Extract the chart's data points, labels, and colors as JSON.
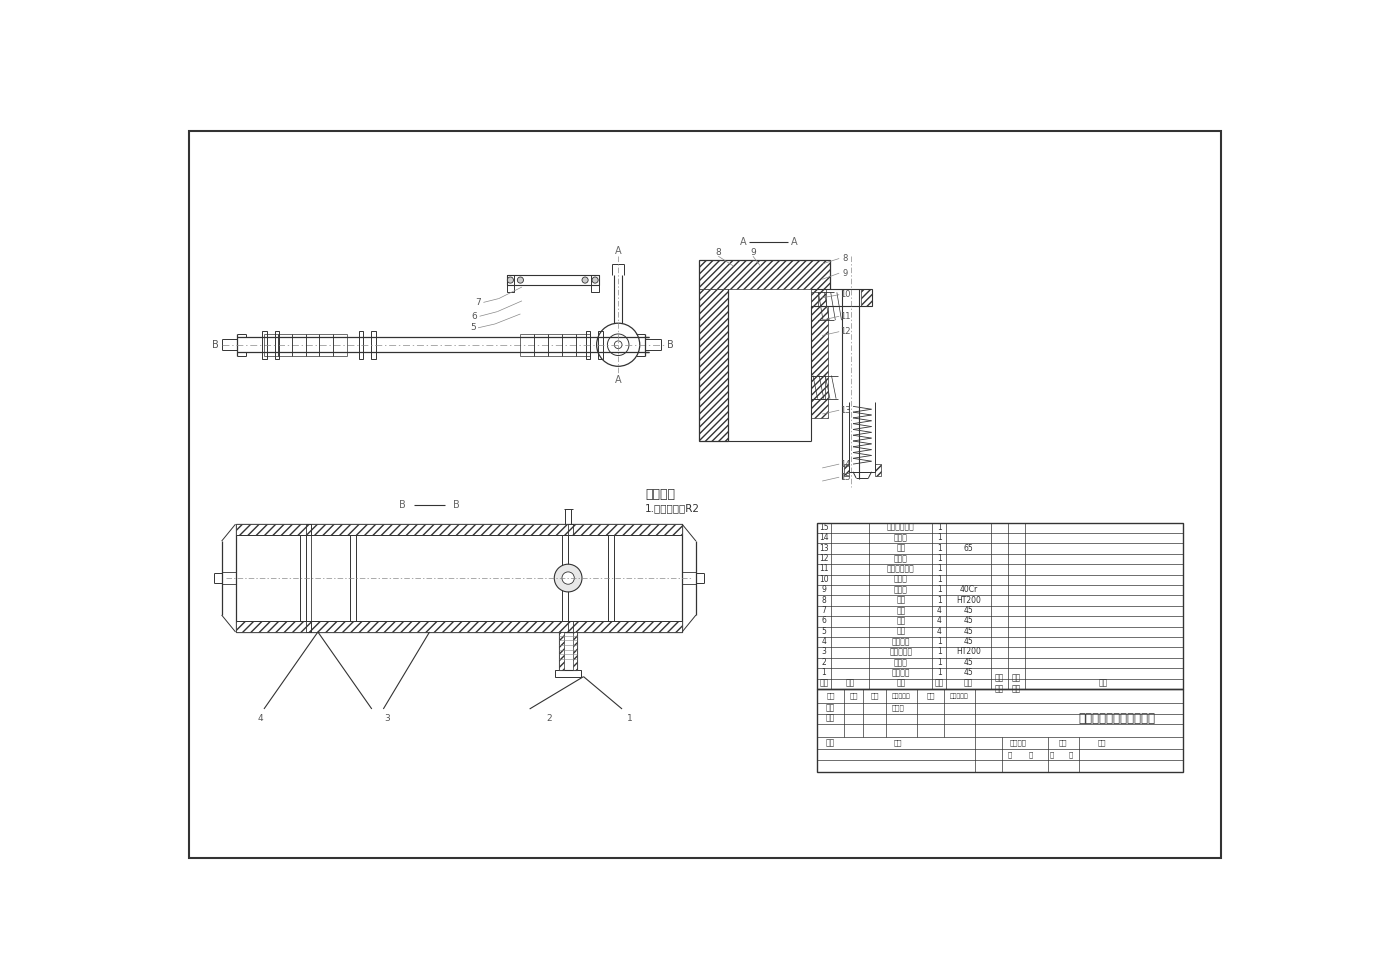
{
  "background_color": "#ffffff",
  "line_color": "#333333",
  "dim_line_color": "#888888",
  "hatch_color": "#555555",
  "university": "哈尔滨工业大学（威海）",
  "tech_req_title": "技术要求",
  "tech_req_line1": "1.未标注圆角R2",
  "bom_rows": [
    {
      "num": "15",
      "name": "圆锥滚子轴承",
      "qty": "1",
      "material": ""
    },
    {
      "num": "14",
      "name": "挡油板",
      "qty": "1",
      "material": ""
    },
    {
      "num": "13",
      "name": "弹簧",
      "qty": "1",
      "material": "65"
    },
    {
      "num": "12",
      "name": "挡油板",
      "qty": "1",
      "material": ""
    },
    {
      "num": "11",
      "name": "圆锥滚子轴承",
      "qty": "1",
      "material": ""
    },
    {
      "num": "10",
      "name": "轴承盖",
      "qty": "1",
      "material": ""
    },
    {
      "num": "9",
      "name": "齿轮轴",
      "qty": "1",
      "material": "40Cr"
    },
    {
      "num": "8",
      "name": "管盖",
      "qty": "1",
      "material": "HT200"
    },
    {
      "num": "7",
      "name": "垫圈",
      "qty": "4",
      "material": "45"
    },
    {
      "num": "6",
      "name": "螺母",
      "qty": "4",
      "material": "45"
    },
    {
      "num": "5",
      "name": "螺栓",
      "qty": "4",
      "material": "45"
    },
    {
      "num": "4",
      "name": "转向齿条",
      "qty": "1",
      "material": "45"
    },
    {
      "num": "3",
      "name": "转向器壳体",
      "qty": "1",
      "material": "HT200"
    },
    {
      "num": "2",
      "name": "拉杆头",
      "qty": "1",
      "material": "45"
    },
    {
      "num": "1",
      "name": "压紧螺母",
      "qty": "1",
      "material": "45"
    }
  ]
}
